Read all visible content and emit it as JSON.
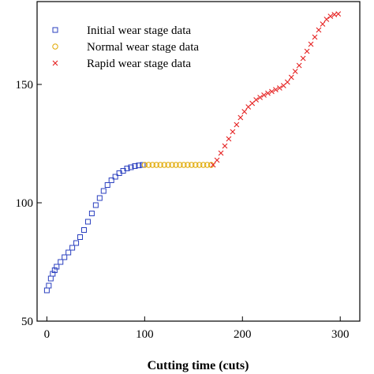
{
  "chart_data": {
    "type": "scatter",
    "title": "",
    "xlabel": "Cutting time (cuts)",
    "ylabel": "",
    "xlim": [
      -10,
      320
    ],
    "ylim": [
      50,
      185
    ],
    "xticks": [
      0,
      100,
      200,
      300
    ],
    "yticks": [
      50,
      100,
      150
    ],
    "grid": false,
    "legend_position": "top-left",
    "series": [
      {
        "name": "Initial wear stage data",
        "marker": "square",
        "color": "#2a3fbf",
        "points": [
          [
            0,
            63
          ],
          [
            2,
            65
          ],
          [
            4,
            68
          ],
          [
            6,
            70
          ],
          [
            8,
            71.5
          ],
          [
            10,
            73
          ],
          [
            14,
            75
          ],
          [
            18,
            77
          ],
          [
            22,
            79
          ],
          [
            26,
            81
          ],
          [
            30,
            83
          ],
          [
            34,
            85.5
          ],
          [
            38,
            88.5
          ],
          [
            42,
            92
          ],
          [
            46,
            95.5
          ],
          [
            50,
            99
          ],
          [
            54,
            102
          ],
          [
            58,
            105
          ],
          [
            62,
            107.5
          ],
          [
            66,
            109.5
          ],
          [
            70,
            111
          ],
          [
            74,
            112.5
          ],
          [
            78,
            113.5
          ],
          [
            82,
            114.5
          ],
          [
            86,
            115
          ],
          [
            90,
            115.5
          ],
          [
            94,
            115.8
          ],
          [
            98,
            116
          ]
        ]
      },
      {
        "name": "Normal wear stage data",
        "marker": "circle",
        "color": "#e0a800",
        "points": [
          [
            100,
            116
          ],
          [
            104,
            116
          ],
          [
            108,
            116
          ],
          [
            112,
            116
          ],
          [
            116,
            116
          ],
          [
            120,
            116
          ],
          [
            124,
            116
          ],
          [
            128,
            116
          ],
          [
            132,
            116
          ],
          [
            136,
            116
          ],
          [
            140,
            116
          ],
          [
            144,
            116
          ],
          [
            148,
            116
          ],
          [
            152,
            116
          ],
          [
            156,
            116
          ],
          [
            160,
            116
          ],
          [
            164,
            116
          ],
          [
            168,
            116
          ]
        ]
      },
      {
        "name": "Rapid wear stage data",
        "marker": "cross",
        "color": "#e52020",
        "points": [
          [
            170,
            116
          ],
          [
            174,
            118
          ],
          [
            178,
            121
          ],
          [
            182,
            124
          ],
          [
            186,
            127
          ],
          [
            190,
            130
          ],
          [
            194,
            133
          ],
          [
            198,
            136
          ],
          [
            202,
            138.5
          ],
          [
            206,
            140.5
          ],
          [
            210,
            142
          ],
          [
            214,
            143.5
          ],
          [
            218,
            144.5
          ],
          [
            222,
            145.5
          ],
          [
            226,
            146.3
          ],
          [
            230,
            147
          ],
          [
            234,
            147.8
          ],
          [
            238,
            148.5
          ],
          [
            242,
            149.5
          ],
          [
            246,
            151
          ],
          [
            250,
            153
          ],
          [
            254,
            155.5
          ],
          [
            258,
            158
          ],
          [
            262,
            161
          ],
          [
            266,
            164
          ],
          [
            270,
            167
          ],
          [
            274,
            170
          ],
          [
            278,
            173
          ],
          [
            282,
            175.5
          ],
          [
            286,
            177.5
          ],
          [
            290,
            178.8
          ],
          [
            294,
            179.5
          ],
          [
            298,
            179.8
          ]
        ]
      }
    ]
  }
}
